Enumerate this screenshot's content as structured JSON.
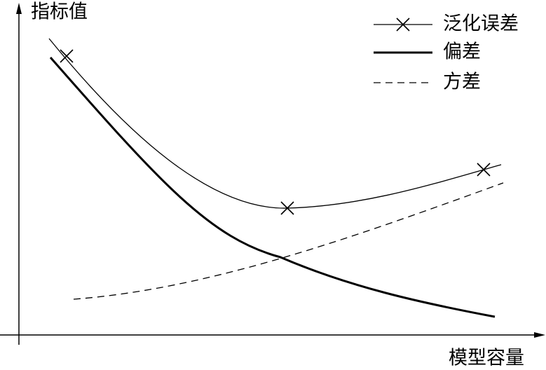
{
  "axes": {
    "y_label": "指标值",
    "x_label": "模型容量"
  },
  "legend": {
    "items": [
      {
        "label": "泛化误差"
      },
      {
        "label": "偏差"
      },
      {
        "label": "方差"
      }
    ]
  }
}
